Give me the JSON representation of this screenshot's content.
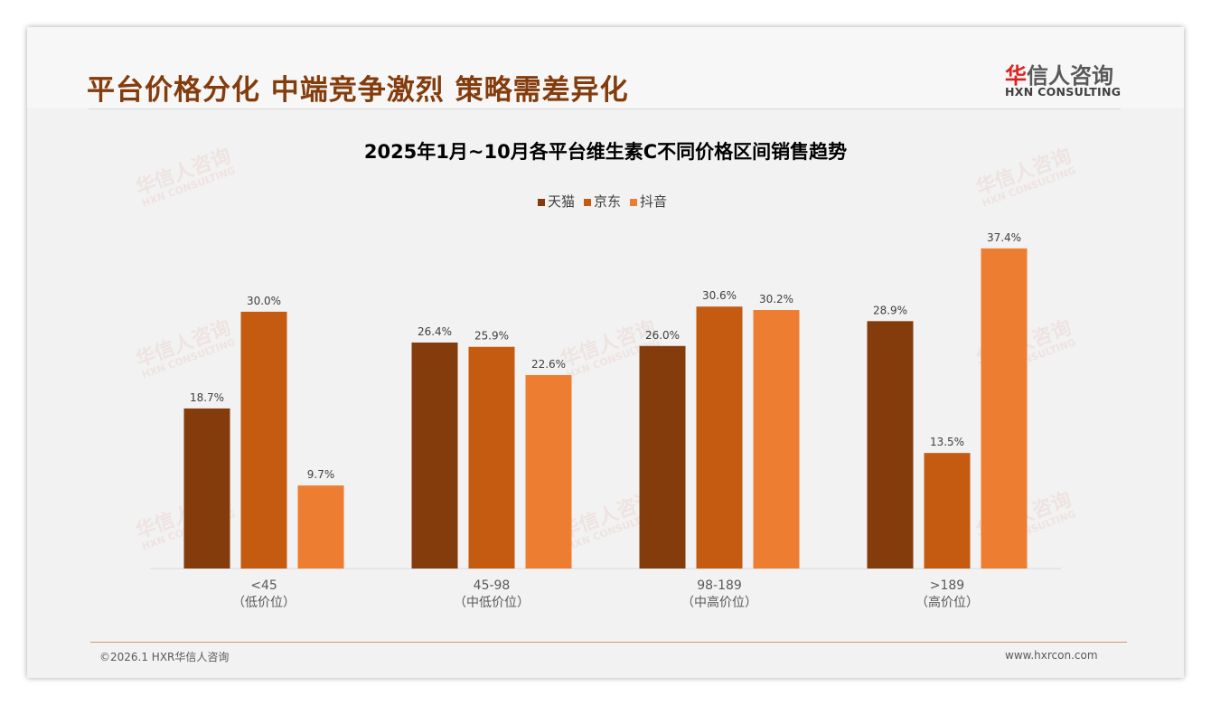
{
  "header": {
    "title": "平台价格分化 中端竞争激烈 策略需差异化",
    "logo_cn_red": "华",
    "logo_cn": "信人咨询",
    "logo_en": "HXN CONSULTING"
  },
  "watermark": {
    "cn": "华信人咨询",
    "en": "HXN CONSULTING"
  },
  "chart_data": {
    "type": "bar",
    "title": "2025年1月~10月各平台维生素C不同价格区间销售趋势",
    "categories": [
      "<45",
      "45-98",
      "98-189",
      ">189"
    ],
    "category_sublabels": [
      "（低价位）",
      "（中低价位）",
      "（中高价位）",
      "（高价位）"
    ],
    "series": [
      {
        "name": "天猫",
        "color": "#843c0c",
        "values": [
          18.7,
          26.4,
          26.0,
          28.9
        ]
      },
      {
        "name": "京东",
        "color": "#c55a11",
        "values": [
          30.0,
          25.9,
          30.6,
          13.5
        ]
      },
      {
        "name": "抖音",
        "color": "#ed7d31",
        "values": [
          9.7,
          22.6,
          30.2,
          37.4
        ]
      }
    ],
    "value_suffix": "%",
    "ylim": [
      0,
      40
    ],
    "grid": false,
    "legend": "top-center",
    "xlabel": "",
    "ylabel": ""
  },
  "footer": {
    "left": "©2026.1 HXR华信人咨询",
    "right": "www.hxrcon.com"
  }
}
